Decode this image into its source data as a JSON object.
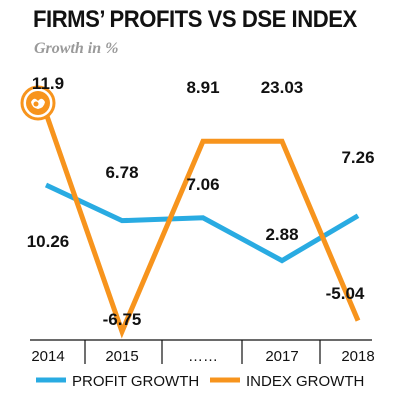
{
  "chart_data": {
    "type": "line",
    "title": "FIRMS’ PROFITS VS DSE INDEX",
    "subtitle": "Growth in %",
    "categories": [
      "2014",
      "2015",
      "……",
      "2017",
      "2018"
    ],
    "series": [
      {
        "name": "PROFIT GROWTH",
        "color": "#29abe2",
        "values": [
          10.26,
          6.78,
          7.06,
          2.88,
          7.26
        ]
      },
      {
        "name": "INDEX GROWTH",
        "color": "#f7941d",
        "values": [
          11.9,
          -6.75,
          8.91,
          23.03,
          -5.04
        ]
      }
    ],
    "legend": {
      "position": "bottom"
    },
    "grid": false,
    "logo_icon": "orange-circle-logo-icon"
  }
}
